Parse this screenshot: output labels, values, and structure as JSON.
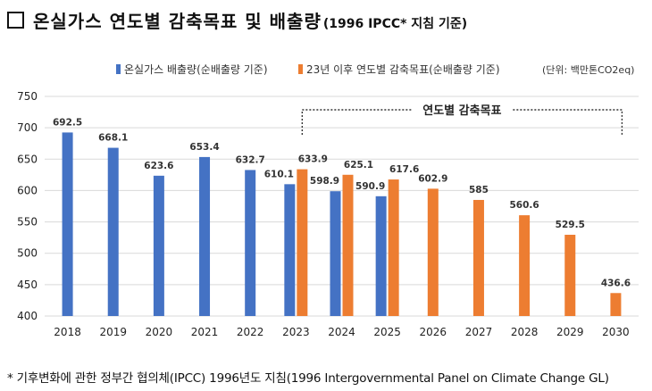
{
  "title": "□ 온실가스 연도별 감축목표 및 배출량",
  "title_box": "",
  "title_main": "온실가스 연도별 감축목표 및 배출량",
  "title_sub": "(1996 IPCC* 지침 기준)",
  "footnote": "* 기후변화에 관한 정부간 협의체(IPCC) 1996년도 지침(1996 Intergovernmental Panel on Climate Change GL)",
  "chart_data": {
    "type": "bar",
    "unit_label": "(단위: 백만톤CO2eq)",
    "bracket_label": "연도별 감축목표",
    "categories": [
      "2018",
      "2019",
      "2020",
      "2021",
      "2022",
      "2023",
      "2024",
      "2025",
      "2026",
      "2027",
      "2028",
      "2029",
      "2030"
    ],
    "ylim": [
      400,
      750
    ],
    "yticks": [
      400,
      450,
      500,
      550,
      600,
      650,
      700,
      750
    ],
    "grid": true,
    "legend_position": "top",
    "series": [
      {
        "name": "온실가스 배출량(순배출량 기준)",
        "color": "#4472C4",
        "values": [
          692.5,
          668.1,
          623.6,
          653.4,
          632.7,
          610.1,
          598.9,
          590.9,
          null,
          null,
          null,
          null,
          null
        ],
        "labels": [
          "692.5",
          "668.1",
          "623.6",
          "653.4",
          "632.7",
          "610.1",
          "598.9",
          "590.9",
          null,
          null,
          null,
          null,
          null
        ]
      },
      {
        "name": "23년 이후 연도별 감축목표(순배출량 기준)",
        "color": "#ED7D31",
        "values": [
          null,
          null,
          null,
          null,
          null,
          633.9,
          625.1,
          617.6,
          602.9,
          585,
          560.6,
          529.5,
          436.6
        ],
        "labels": [
          null,
          null,
          null,
          null,
          null,
          "633.9",
          "625.1",
          "617.6",
          "602.9",
          "585",
          "560.6",
          "529.5",
          "436.6"
        ]
      }
    ]
  }
}
